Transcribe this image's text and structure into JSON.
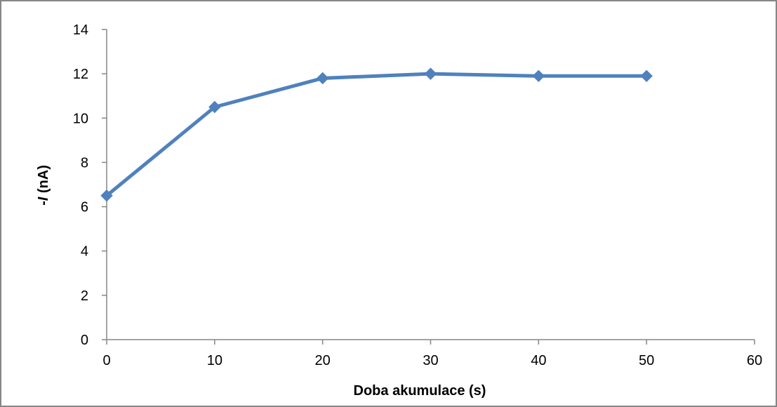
{
  "chart_data": {
    "type": "line",
    "title": "",
    "xlabel": "Doba akumulace (s)",
    "ylabel_prefix": "-",
    "ylabel_symbol": "I",
    "ylabel_suffix": " (nA)",
    "xlim": [
      0,
      60
    ],
    "ylim": [
      0,
      14
    ],
    "xticks": [
      0,
      10,
      20,
      30,
      40,
      50,
      60
    ],
    "yticks": [
      0,
      2,
      4,
      6,
      8,
      10,
      12,
      14
    ],
    "grid": false,
    "legend": "none",
    "marker": "diamond",
    "series": [
      {
        "color": "#4f81bd",
        "x": [
          0,
          10,
          20,
          30,
          40,
          50
        ],
        "y": [
          6.5,
          10.5,
          11.8,
          12.0,
          11.9,
          11.9
        ]
      }
    ]
  }
}
